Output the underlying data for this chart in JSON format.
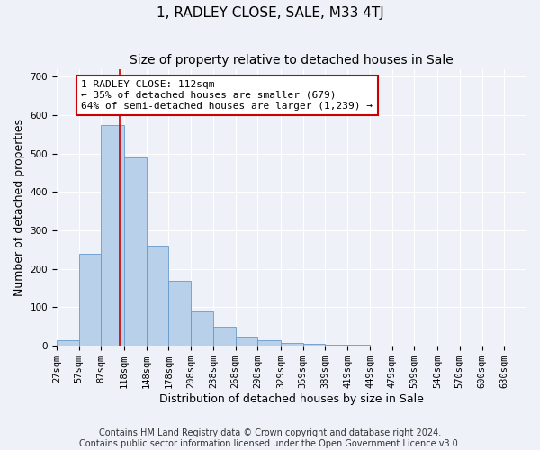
{
  "title": "1, RADLEY CLOSE, SALE, M33 4TJ",
  "subtitle": "Size of property relative to detached houses in Sale",
  "xlabel": "Distribution of detached houses by size in Sale",
  "ylabel": "Number of detached properties",
  "bin_labels": [
    "27sqm",
    "57sqm",
    "87sqm",
    "118sqm",
    "148sqm",
    "178sqm",
    "208sqm",
    "238sqm",
    "268sqm",
    "298sqm",
    "329sqm",
    "359sqm",
    "389sqm",
    "419sqm",
    "449sqm",
    "479sqm",
    "509sqm",
    "540sqm",
    "570sqm",
    "600sqm",
    "630sqm"
  ],
  "bin_edges": [
    27,
    57,
    87,
    118,
    148,
    178,
    208,
    238,
    268,
    298,
    329,
    359,
    389,
    419,
    449,
    479,
    509,
    540,
    570,
    600,
    630,
    660
  ],
  "bar_heights": [
    15,
    240,
    575,
    490,
    260,
    170,
    90,
    50,
    25,
    15,
    8,
    5,
    3,
    2,
    1,
    0,
    1,
    0,
    0,
    0,
    0
  ],
  "bar_color": "#b8d0ea",
  "bar_edgecolor": "#6699cc",
  "property_size": 112,
  "annotation_text": "1 RADLEY CLOSE: 112sqm\n← 35% of detached houses are smaller (679)\n64% of semi-detached houses are larger (1,239) →",
  "annotation_box_color": "#ffffff",
  "annotation_box_edgecolor": "#cc0000",
  "vline_color": "#cc0000",
  "ylim": [
    0,
    720
  ],
  "yticks": [
    0,
    100,
    200,
    300,
    400,
    500,
    600,
    700
  ],
  "footnote": "Contains HM Land Registry data © Crown copyright and database right 2024.\nContains public sector information licensed under the Open Government Licence v3.0.",
  "background_color": "#eef2f8",
  "grid_color": "#ffffff",
  "title_fontsize": 11,
  "subtitle_fontsize": 10,
  "axis_label_fontsize": 9,
  "tick_fontsize": 7.5,
  "annotation_fontsize": 8,
  "footnote_fontsize": 7
}
